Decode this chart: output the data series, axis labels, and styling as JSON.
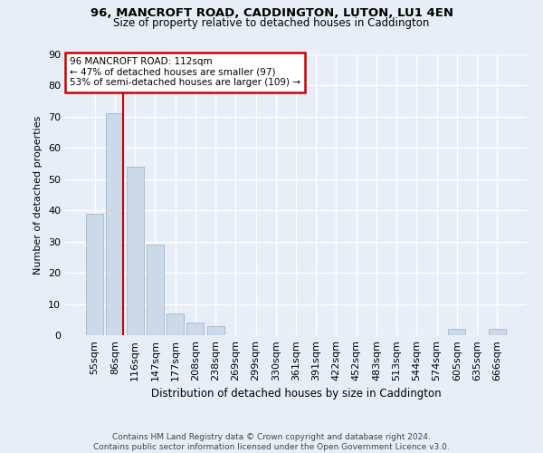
{
  "title1": "96, MANCROFT ROAD, CADDINGTON, LUTON, LU1 4EN",
  "title2": "Size of property relative to detached houses in Caddington",
  "xlabel": "Distribution of detached houses by size in Caddington",
  "ylabel": "Number of detached properties",
  "categories": [
    "55sqm",
    "86sqm",
    "116sqm",
    "147sqm",
    "177sqm",
    "208sqm",
    "238sqm",
    "269sqm",
    "299sqm",
    "330sqm",
    "361sqm",
    "391sqm",
    "422sqm",
    "452sqm",
    "483sqm",
    "513sqm",
    "544sqm",
    "574sqm",
    "605sqm",
    "635sqm",
    "666sqm"
  ],
  "values": [
    39,
    71,
    54,
    29,
    7,
    4,
    3,
    0,
    0,
    0,
    0,
    0,
    0,
    0,
    0,
    0,
    0,
    0,
    2,
    0,
    2
  ],
  "bar_color": "#ccd9e8",
  "bar_edge_color": "#aabdd4",
  "property_line_index": 1,
  "property_line_color": "#cc0000",
  "annotation_text": "96 MANCROFT ROAD: 112sqm\n← 47% of detached houses are smaller (97)\n53% of semi-detached houses are larger (109) →",
  "annotation_box_color": "white",
  "annotation_box_edge_color": "#cc0000",
  "ylim": [
    0,
    90
  ],
  "yticks": [
    0,
    10,
    20,
    30,
    40,
    50,
    60,
    70,
    80,
    90
  ],
  "background_color": "#e8eef8",
  "grid_color": "white",
  "footer": "Contains HM Land Registry data © Crown copyright and database right 2024.\nContains public sector information licensed under the Open Government Licence v3.0."
}
